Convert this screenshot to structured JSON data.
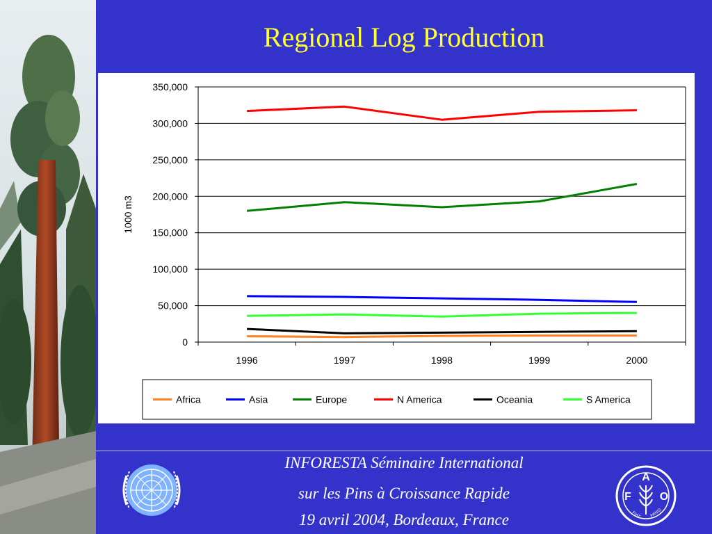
{
  "slide": {
    "title": "Regional Log Production",
    "footer": [
      "INFORESTA Séminaire International",
      "sur les Pins à Croissance Rapide",
      "19 avril 2004, Bordeaux, France"
    ]
  },
  "logos": {
    "fao_letters": [
      "F",
      "A",
      "O"
    ],
    "fao_motto": "FIAT PANIS"
  },
  "colors": {
    "background": "#3333cc",
    "title": "#ffff33",
    "footer_text": "#ffffff"
  },
  "chart_data": {
    "type": "line",
    "title": "",
    "xlabel": "",
    "ylabel": "1000 m3",
    "x": [
      "1996",
      "1997",
      "1998",
      "1999",
      "2000"
    ],
    "ylim": [
      0,
      350000
    ],
    "yticks": [
      0,
      50000,
      100000,
      150000,
      200000,
      250000,
      300000,
      350000
    ],
    "ytick_labels": [
      "0",
      "50,000",
      "100,000",
      "150,000",
      "200,000",
      "250,000",
      "300,000",
      "350,000"
    ],
    "grid": true,
    "legend": "bottom",
    "series": [
      {
        "name": "Africa",
        "color": "#ff8020",
        "values": [
          8000,
          7000,
          8500,
          9000,
          9000
        ]
      },
      {
        "name": "Asia",
        "color": "#0000ff",
        "values": [
          63000,
          62000,
          60000,
          58000,
          55000
        ]
      },
      {
        "name": "Europe",
        "color": "#008000",
        "values": [
          180000,
          192000,
          185000,
          193000,
          217000
        ]
      },
      {
        "name": "N America",
        "color": "#ff0000",
        "values": [
          317000,
          323000,
          305000,
          316000,
          318000
        ]
      },
      {
        "name": "Oceania",
        "color": "#000000",
        "values": [
          18000,
          12000,
          13000,
          14000,
          15000
        ]
      },
      {
        "name": "S America",
        "color": "#33ff33",
        "values": [
          36000,
          38000,
          35000,
          39000,
          40000
        ]
      }
    ]
  }
}
